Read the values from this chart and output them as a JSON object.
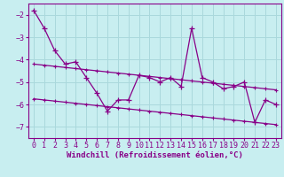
{
  "title": "",
  "xlabel": "Windchill (Refroidissement éolien,°C)",
  "background_color": "#c8eef0",
  "grid_color": "#aad8dc",
  "line_color": "#880088",
  "x_values": [
    0,
    1,
    2,
    3,
    4,
    5,
    6,
    7,
    8,
    9,
    10,
    11,
    12,
    13,
    14,
    15,
    16,
    17,
    18,
    19,
    20,
    21,
    22,
    23
  ],
  "y_main": [
    -1.8,
    -2.6,
    -3.6,
    -4.2,
    -4.1,
    -4.8,
    -5.5,
    -6.3,
    -5.8,
    -5.8,
    -4.7,
    -4.8,
    -5.0,
    -4.8,
    -5.2,
    -2.6,
    -4.8,
    -5.0,
    -5.3,
    -5.2,
    -5.0,
    -6.8,
    -5.8,
    -6.0
  ],
  "y_smooth1": [
    -4.2,
    -4.25,
    -4.3,
    -4.35,
    -4.4,
    -4.45,
    -4.5,
    -4.55,
    -4.6,
    -4.65,
    -4.7,
    -4.75,
    -4.8,
    -4.85,
    -4.9,
    -4.95,
    -5.0,
    -5.05,
    -5.1,
    -5.15,
    -5.2,
    -5.25,
    -5.3,
    -5.35
  ],
  "y_smooth2": [
    -5.75,
    -5.8,
    -5.85,
    -5.9,
    -5.95,
    -6.0,
    -6.05,
    -6.1,
    -6.15,
    -6.2,
    -6.25,
    -6.3,
    -6.35,
    -6.4,
    -6.45,
    -6.5,
    -6.55,
    -6.6,
    -6.65,
    -6.7,
    -6.75,
    -6.8,
    -6.85,
    -6.9
  ],
  "ylim": [
    -7.5,
    -1.5
  ],
  "xlim": [
    -0.5,
    23.5
  ],
  "yticks": [
    -7,
    -6,
    -5,
    -4,
    -3,
    -2
  ],
  "xticks": [
    0,
    1,
    2,
    3,
    4,
    5,
    6,
    7,
    8,
    9,
    10,
    11,
    12,
    13,
    14,
    15,
    16,
    17,
    18,
    19,
    20,
    21,
    22,
    23
  ],
  "xlabel_fontsize": 6.5,
  "tick_fontsize": 6,
  "linewidth": 0.9,
  "markersize": 3.5
}
